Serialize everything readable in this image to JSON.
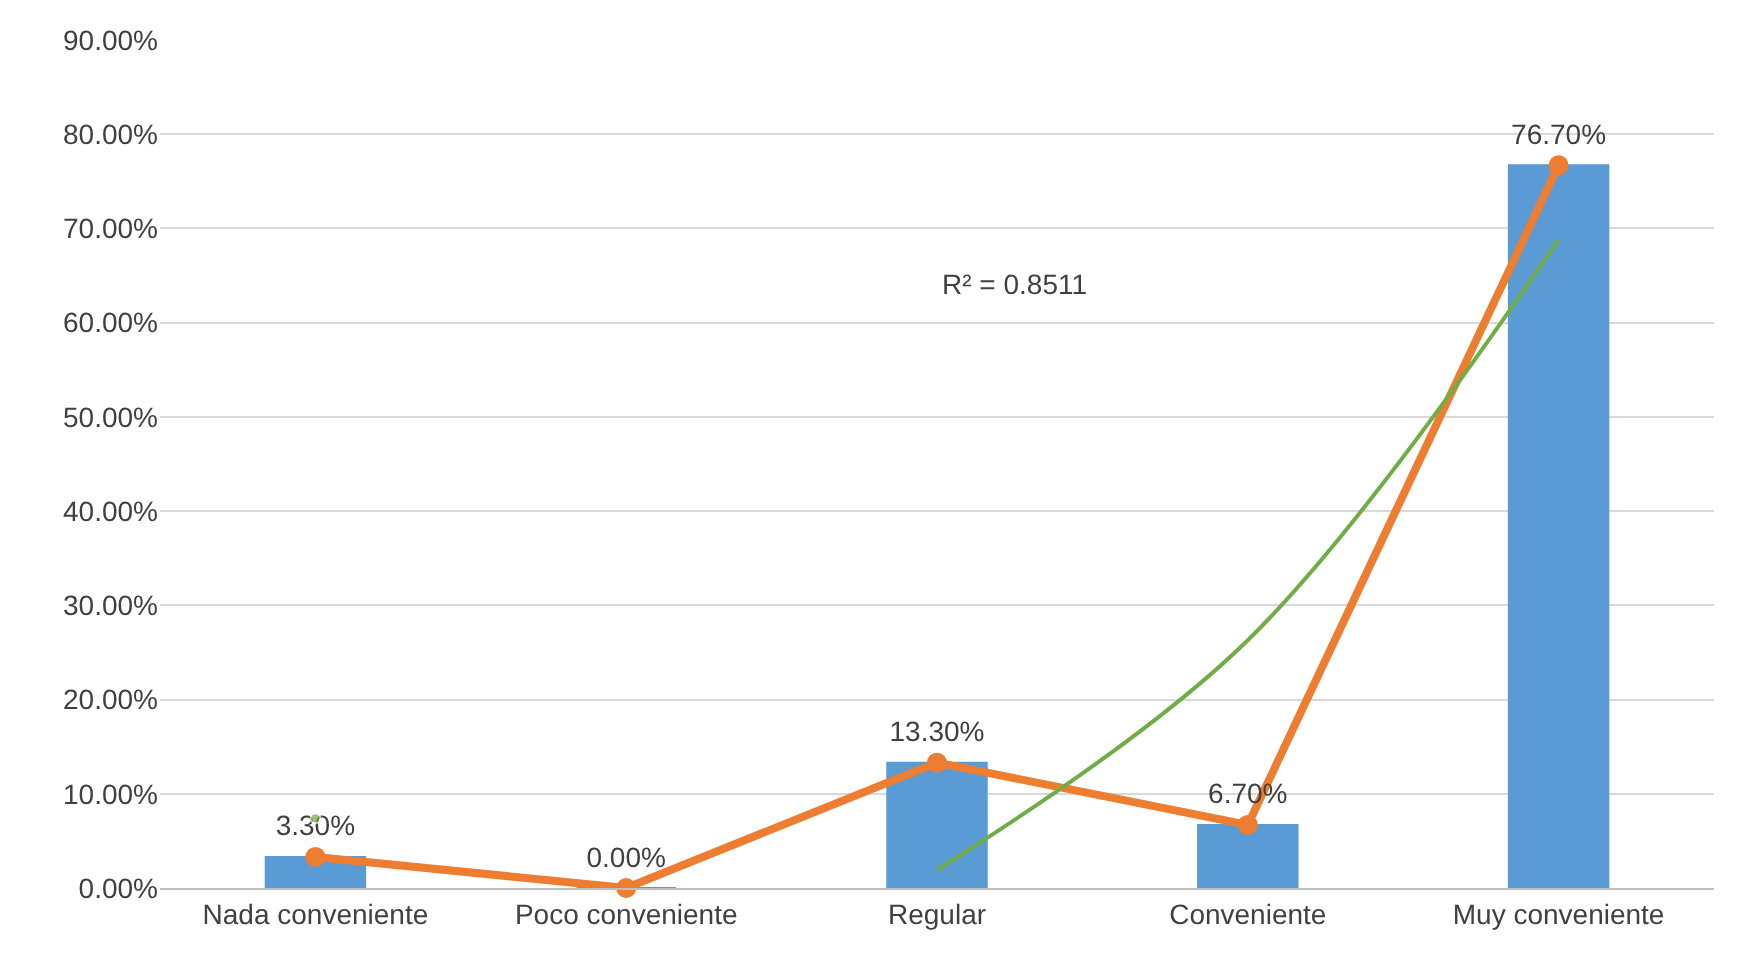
{
  "chart_data": {
    "type": "bar",
    "categories": [
      "Nada conveniente",
      "Poco conveniente",
      "Regular",
      "Conveniente",
      "Muy conveniente"
    ],
    "series": [
      {
        "color": "#5b9bd5",
        "values": [
          3.3,
          0,
          13.3,
          6.7,
          76.7
        ]
      },
      {
        "type": "line",
        "color": "#ed7d31",
        "marker": "circle",
        "values": [
          3.3,
          0,
          13.3,
          6.7,
          76.7
        ],
        "value_labels": [
          "3.30%",
          "0.00%",
          "13.30%",
          "6.70%",
          "76.70%"
        ]
      },
      {
        "type": "line",
        "color": "#70ad47",
        "marker": "none",
        "values": [
          7.4,
          null,
          1.9,
          26.3,
          68.8
        ]
      }
    ],
    "ylim": [
      0,
      90
    ],
    "yticks": [
      {
        "value": 0,
        "label": "0.00%"
      },
      {
        "value": 10,
        "label": "10.00%"
      },
      {
        "value": 20,
        "label": "20.00%"
      },
      {
        "value": 30,
        "label": "30.00%"
      },
      {
        "value": 40,
        "label": "40.00%"
      },
      {
        "value": 50,
        "label": "50.00%"
      },
      {
        "value": 60,
        "label": "60.00%"
      },
      {
        "value": 70,
        "label": "70.00%"
      },
      {
        "value": 80,
        "label": "80.00%"
      },
      {
        "value": 90,
        "label": "90.00%"
      }
    ],
    "grid": "y",
    "legend": false,
    "annotations": [
      "R² = 0.8511"
    ]
  }
}
